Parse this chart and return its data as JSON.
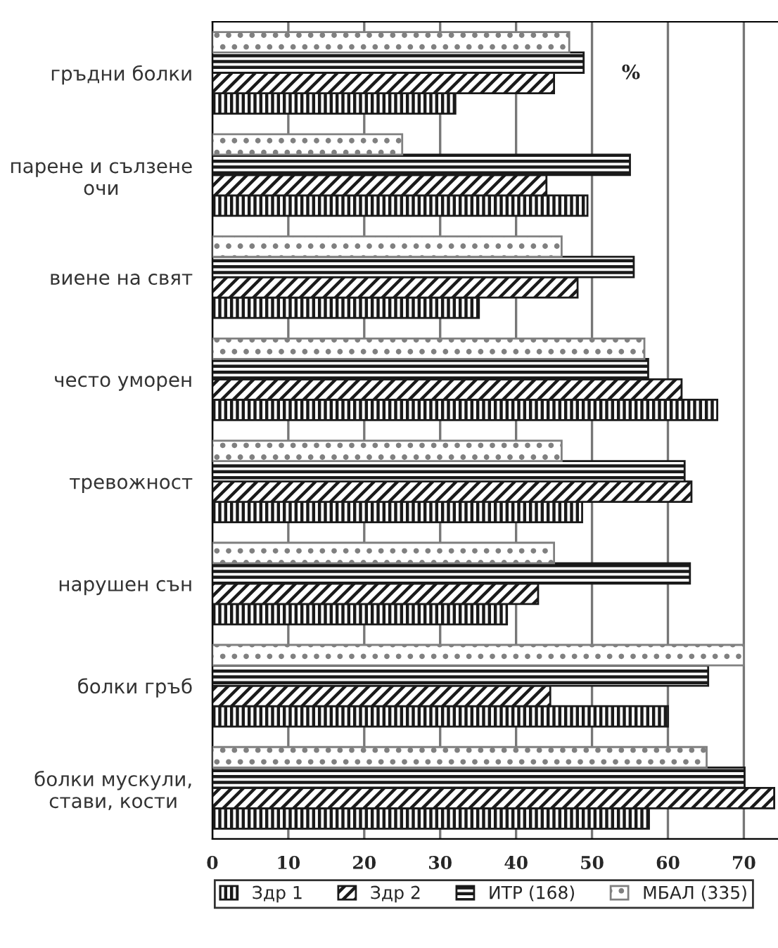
{
  "chart_data": {
    "type": "bar",
    "orientation": "horizontal",
    "categories": [
      "гръдни болки",
      "парене и сълзене\nочи",
      "виене на свят",
      "често уморен",
      "тревожност",
      "нарушен сън",
      "болки гръб",
      "болки мускули,\nстави, кости"
    ],
    "series": [
      {
        "name": "Здр 1",
        "color": "#1a1a1a",
        "values": [
          32.0,
          49.4,
          35.1,
          66.5,
          48.7,
          38.8,
          60.0,
          57.5
        ]
      },
      {
        "name": "Здр 2",
        "color": "#1a1a1a",
        "values": [
          45.0,
          44.0,
          48.1,
          61.8,
          63.1,
          42.9,
          44.5,
          74.0
        ]
      },
      {
        "name": "ИТР (168)",
        "color": "#1a1a1a",
        "values": [
          48.9,
          55.0,
          55.5,
          57.4,
          62.2,
          62.9,
          65.3,
          70.1
        ]
      },
      {
        "name": "МБАЛ (335)",
        "color": "#808080",
        "values": [
          47.0,
          25.0,
          46.0,
          56.9,
          46.0,
          45.0,
          70.0,
          65.1
        ]
      }
    ],
    "xlim": [
      0,
      74.5
    ],
    "xticks": [
      0,
      10,
      20,
      30,
      40,
      50,
      60,
      70
    ],
    "grid": "x",
    "legend": "bottom",
    "annotations": [
      "%"
    ]
  }
}
